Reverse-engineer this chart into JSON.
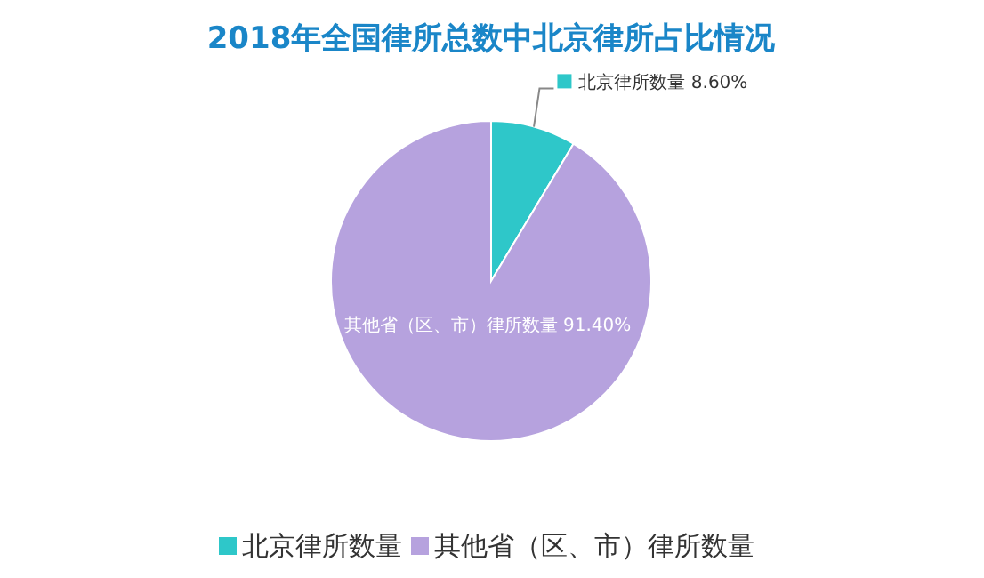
{
  "chart_data": {
    "type": "pie",
    "title": "2018年全国律所总数中北京律所占比情况",
    "categories": [
      "北京律所数量",
      "其他省（区、市）律所数量"
    ],
    "values": [
      8.6,
      91.4
    ],
    "colors": [
      "#2ec7c9",
      "#b6a2de"
    ],
    "value_labels": [
      "8.60%",
      "91.40%"
    ],
    "legend": "bottom"
  }
}
